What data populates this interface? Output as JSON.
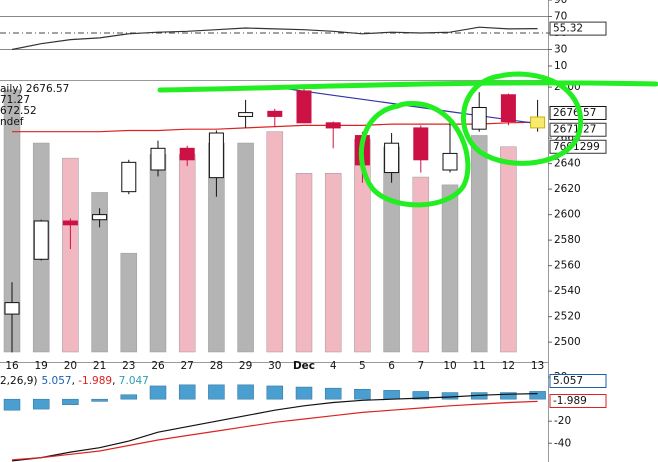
{
  "chart_data": [
    {
      "type": "line",
      "ylim": [
        -7,
        90
      ],
      "yticks": [
        90,
        70,
        50,
        30,
        10
      ],
      "reference_lines": [
        {
          "value": 70
        },
        {
          "value": 50,
          "dashed": true
        },
        {
          "value": 30
        }
      ],
      "series": [
        {
          "color": "#333333",
          "values": [
            30,
            37,
            42,
            44,
            49,
            51,
            52,
            54,
            56,
            55,
            54,
            52,
            49,
            51,
            50,
            51,
            57,
            55,
            55.32
          ]
        }
      ]
    },
    {
      "type": "candlestick",
      "legend": [
        {
          "text": "aily) 2676.57",
          "color": "#111111"
        },
        {
          "text": "71.27",
          "color": "#111111"
        },
        {
          "text": "672.52",
          "color": "#cc0000"
        },
        {
          "text": "ndef",
          "color": "#111111"
        }
      ],
      "categories": [
        "16",
        "19",
        "20",
        "21",
        "23",
        "26",
        "27",
        "28",
        "29",
        "30",
        "Dec",
        "4",
        "5",
        "6",
        "7",
        "10",
        "11",
        "12",
        "13"
      ],
      "open": [
        2522,
        2565,
        2595,
        2596,
        2618,
        2635,
        2652,
        2629,
        2677,
        2681,
        2697,
        2672,
        2662,
        2633,
        2668,
        2635,
        2667,
        2694,
        2668
      ],
      "high": [
        2547,
        2596,
        2597,
        2605,
        2643,
        2658,
        2654,
        2666,
        2690,
        2683,
        2700,
        2673,
        2665,
        2664,
        2670,
        2672,
        2696,
        2695,
        2690
      ],
      "low": [
        2492,
        2564,
        2573,
        2590,
        2616,
        2630,
        2638,
        2614,
        2668,
        2669,
        2672,
        2652,
        2625,
        2625,
        2633,
        2633,
        2665,
        2670,
        2665
      ],
      "close": [
        2531,
        2595,
        2592,
        2600,
        2641,
        2652,
        2643,
        2664,
        2680,
        2677,
        2672,
        2668,
        2639,
        2656,
        2643,
        2648,
        2684,
        2673,
        2676.57
      ],
      "up_color": "#ffffff",
      "down_color": "#cc1144",
      "highlight_color": "#f7ea6f",
      "ylim": [
        2486,
        2704
      ],
      "yticks": [
        2700,
        2660,
        2640,
        2620,
        2600,
        2580,
        2560,
        2540,
        2520,
        2500
      ],
      "series": [
        {
          "color": "#dd2222",
          "values": [
            2665,
            2665,
            2665,
            2665,
            2666,
            2666,
            2667,
            2667,
            2668,
            2669,
            2670,
            2670,
            2670,
            2671,
            2671,
            2671,
            2671,
            2672,
            2672.52
          ]
        },
        {
          "color": "#3333aa",
          "values": [
            null,
            null,
            null,
            null,
            null,
            null,
            null,
            null,
            null,
            2700,
            2696.8,
            2693.6,
            2690.4,
            2687.2,
            2684,
            2680.8,
            2677.6,
            2674.4,
            2671.27
          ]
        }
      ],
      "volume": {
        "vlim": [
          0,
          10000000
        ],
        "up_color": "#b4b4b4",
        "down_color": "#f2b8c2",
        "values": [
          9710000,
          7740000,
          7180000,
          5910000,
          3660000,
          7320000,
          7320000,
          7740000,
          7740000,
          8160000,
          6620000,
          6620000,
          7880000,
          7600000,
          6480000,
          6190000,
          8020000,
          7601299,
          null
        ]
      }
    },
    {
      "type": "macd",
      "legend": "2,26,9)",
      "ylim": [
        -57,
        31
      ],
      "yticks": [
        20,
        -20,
        -40
      ],
      "histogram": {
        "color": "#4a9fd0",
        "values": [
          -10,
          -9,
          -5,
          -2,
          4,
          12,
          13,
          13,
          13,
          12,
          11,
          10,
          9,
          8,
          7,
          6,
          6,
          6,
          7.047
        ]
      },
      "series": [
        {
          "color": "#111111",
          "values": [
            -56,
            -53,
            -48,
            -44,
            -38,
            -30,
            -25,
            -20,
            -15,
            -10,
            -6,
            -3,
            -1,
            0,
            1,
            2,
            3.5,
            4.5,
            5.057
          ]
        },
        {
          "color": "#dd2222",
          "values": [
            -55,
            -53,
            -50,
            -47,
            -42,
            -37,
            -33,
            -29,
            -25,
            -21,
            -18,
            -15,
            -12,
            -10,
            -8,
            -6,
            -4.5,
            -3,
            -1.989
          ]
        }
      ]
    }
  ]
}
